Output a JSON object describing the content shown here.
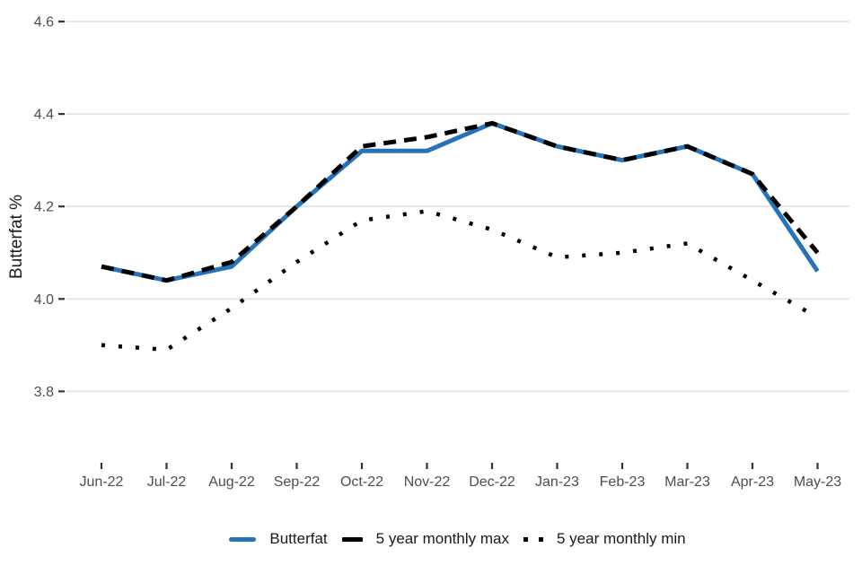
{
  "chart_data": {
    "type": "line",
    "title": "",
    "xlabel": "",
    "ylabel": "Butterfat %",
    "categories": [
      "Jun-22",
      "Jul-22",
      "Aug-22",
      "Sep-22",
      "Oct-22",
      "Nov-22",
      "Dec-22",
      "Jan-23",
      "Feb-23",
      "Mar-23",
      "Apr-23",
      "May-23"
    ],
    "y_ticks": [
      "4.6",
      "4.4",
      "4.2",
      "4.0",
      "3.8"
    ],
    "ylim": [
      3.8,
      4.6
    ],
    "grid": true,
    "legend_position": "bottom",
    "series": [
      {
        "name": "Butterfat",
        "color": "#2673b8",
        "style": "solid",
        "values": [
          4.07,
          4.04,
          4.07,
          4.2,
          4.32,
          4.32,
          4.38,
          4.33,
          4.3,
          4.33,
          4.27,
          4.06
        ]
      },
      {
        "name": "5 year monthly max",
        "color": "#000000",
        "style": "dashed",
        "values": [
          4.07,
          4.04,
          4.08,
          4.2,
          4.33,
          4.35,
          4.38,
          4.33,
          4.3,
          4.33,
          4.27,
          4.1
        ]
      },
      {
        "name": "5 year monthly min",
        "color": "#000000",
        "style": "dotted",
        "values": [
          3.9,
          3.89,
          3.98,
          4.08,
          4.17,
          4.19,
          4.15,
          4.09,
          4.1,
          4.12,
          4.04,
          3.96
        ]
      }
    ]
  },
  "colors": {
    "background": "#ffffff",
    "grid": "#e4e4e4",
    "tick_mark": "#333333",
    "tick_label": "#4d4d4d",
    "axis_title": "#1a1a1a",
    "legend_text": "#1a1a1a",
    "accent_blue": "#2673b8"
  }
}
